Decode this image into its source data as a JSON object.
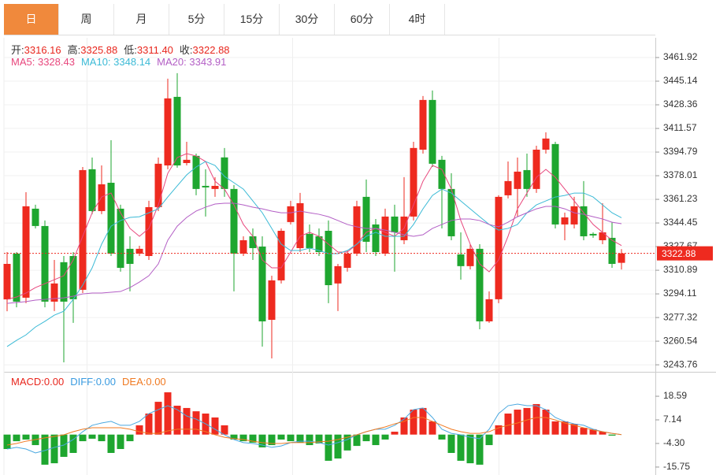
{
  "tabs": [
    "日",
    "周",
    "月",
    "5分",
    "15分",
    "30分",
    "60分",
    "4时"
  ],
  "active_tab": 0,
  "chart_data": {
    "type": "candlestick",
    "ohlc_legend": [
      {
        "name": "开:",
        "value": 3316.16,
        "label": "3316.16"
      },
      {
        "name": "高:",
        "value": 3325.88,
        "label": "3325.88"
      },
      {
        "name": "低:",
        "value": 3311.4,
        "label": "3311.40"
      },
      {
        "name": "收:",
        "value": 3322.88,
        "label": "3322.88"
      }
    ],
    "up_color": "#ee2a1f",
    "down_color": "#1ea62f",
    "open": [
      3290.2,
      3322.7,
      3291.4,
      3354.6,
      3342.3,
      3288.6,
      3316.6,
      3321.0,
      3297.0,
      3382.6,
      3352.9,
      3373.0,
      3354.6,
      3326.1,
      3322.7,
      3321.0,
      3355.7,
      3385.3,
      3434.0,
      3387.0,
      3392.1,
      3370.8,
      3368.6,
      3391.0,
      3368.6,
      3322.7,
      3335.0,
      3327.7,
      3275.7,
      3303.7,
      3345.1,
      3326.6,
      3336.7,
      3335.0,
      3338.9,
      3301.5,
      3312.6,
      3322.7,
      3363.0,
      3343.4,
      3322.7,
      3349.0,
      3332.2,
      3349.0,
      3396.5,
      3431.8,
      3389.3,
      3368.6,
      3322.1,
      3313.8,
      3326.1,
      3274.6,
      3290.3,
      3364.1,
      3368.6,
      3382.0,
      3368.6,
      3396.5,
      3400.5,
      3343.4,
      3343.4,
      3356.3,
      3336.7,
      3332.2,
      3333.9,
      3316.16
    ],
    "high": [
      3323.8,
      3323.8,
      3366.3,
      3357.4,
      3346.2,
      3318.2,
      3321.0,
      3323.8,
      3384.2,
      3390.9,
      3385.3,
      3403.2,
      3357.4,
      3335.0,
      3328.3,
      3360.2,
      3390.9,
      3446.9,
      3450.8,
      3402.1,
      3393.7,
      3382.6,
      3377.0,
      3397.7,
      3371.4,
      3335.0,
      3340.6,
      3335.0,
      3307.0,
      3340.6,
      3360.2,
      3365.8,
      3343.4,
      3340.6,
      3346.2,
      3315.4,
      3324.9,
      3360.2,
      3375.3,
      3347.3,
      3354.6,
      3357.4,
      3377.0,
      3402.1,
      3434.6,
      3438.5,
      3392.1,
      3379.8,
      3337.8,
      3329.4,
      3329.4,
      3295.9,
      3364.1,
      3388.1,
      3390.9,
      3393.7,
      3399.3,
      3408.8,
      3402.1,
      3351.8,
      3363.0,
      3374.2,
      3337.8,
      3358.5,
      3345.1,
      3325.88
    ],
    "low": [
      3281.8,
      3284.6,
      3287.5,
      3340.6,
      3284.6,
      3281.9,
      3245.5,
      3273.5,
      3294.7,
      3350.7,
      3350.7,
      3321.0,
      3309.9,
      3295.9,
      3321.0,
      3318.2,
      3352.9,
      3382.6,
      3383.7,
      3385.3,
      3364.1,
      3349.0,
      3363.0,
      3363.0,
      3295.9,
      3321.0,
      3318.2,
      3256.7,
      3248.3,
      3301.5,
      3343.4,
      3323.8,
      3323.8,
      3321.0,
      3287.5,
      3281.9,
      3309.9,
      3321.0,
      3323.8,
      3321.0,
      3321.0,
      3309.9,
      3329.4,
      3346.2,
      3393.7,
      3384.2,
      3340.6,
      3332.2,
      3304.2,
      3311.5,
      3269.0,
      3273.5,
      3287.5,
      3361.9,
      3349.0,
      3363.0,
      3365.8,
      3393.7,
      3340.6,
      3332.2,
      3340.6,
      3332.2,
      3333.9,
      3329.4,
      3312.6,
      3311.4
    ],
    "close": [
      3315.4,
      3288.6,
      3356.3,
      3342.3,
      3288.6,
      3301.5,
      3288.6,
      3290.3,
      3382.0,
      3352.9,
      3371.9,
      3322.7,
      3312.6,
      3315.4,
      3326.1,
      3355.7,
      3386.5,
      3432.9,
      3385.3,
      3389.3,
      3368.6,
      3369.7,
      3370.8,
      3368.6,
      3322.7,
      3332.2,
      3326.6,
      3274.6,
      3303.7,
      3338.9,
      3356.3,
      3358.5,
      3326.6,
      3323.8,
      3300.3,
      3313.8,
      3322.7,
      3356.3,
      3331.1,
      3323.8,
      3349.0,
      3337.8,
      3349.0,
      3397.7,
      3431.8,
      3386.5,
      3368.6,
      3335.0,
      3313.8,
      3326.1,
      3274.6,
      3290.3,
      3363.0,
      3374.2,
      3380.9,
      3368.6,
      3396.5,
      3404.4,
      3343.4,
      3348.4,
      3356.3,
      3335.0,
      3335.6,
      3337.8,
      3315.4,
      3322.88
    ],
    "series": [
      {
        "name": "MA5:",
        "color": "#e8467c",
        "values": [
          3290.2,
          3291.9,
          3294.7,
          3298.6,
          3301.4,
          3304.2,
          3307.0,
          3318.2,
          3335.0,
          3351.7,
          3362.9,
          3365.7,
          3351.7,
          3340.6,
          3335.0,
          3340.6,
          3357.3,
          3379.7,
          3390.9,
          3393.7,
          3392.0,
          3388.1,
          3374.1,
          3368.5,
          3357.3,
          3343.4,
          3335.0,
          3318.2,
          3312.6,
          3312.6,
          3323.8,
          3335.0,
          3337.8,
          3335.0,
          3329.4,
          3323.8,
          3323.8,
          3329.4,
          3337.8,
          3340.6,
          3337.8,
          3335.0,
          3340.6,
          3357.3,
          3374.1,
          3385.3,
          3382.5,
          3368.5,
          3346.2,
          3329.4,
          3315.4,
          3309.8,
          3318.2,
          3335.0,
          3354.5,
          3365.7,
          3376.9,
          3382.5,
          3376.9,
          3368.5,
          3360.1,
          3351.7,
          3343.4,
          3337.8,
          3332.2,
          3328.43
        ]
      },
      {
        "name": "MA10:",
        "color": "#3bbad6",
        "values": [
          3256.7,
          3261.1,
          3265.0,
          3270.6,
          3274.6,
          3279.0,
          3281.8,
          3290.2,
          3300.3,
          3312.6,
          3329.4,
          3342.2,
          3346.2,
          3348.4,
          3348.9,
          3351.7,
          3354.5,
          3362.9,
          3370.8,
          3378.6,
          3384.2,
          3388.1,
          3385.3,
          3377.5,
          3373.0,
          3368.5,
          3360.1,
          3351.7,
          3340.6,
          3329.4,
          3324.9,
          3324.9,
          3326.6,
          3324.9,
          3322.7,
          3322.7,
          3324.9,
          3329.4,
          3335.0,
          3337.8,
          3335.0,
          3335.0,
          3335.0,
          3343.4,
          3354.5,
          3364.0,
          3368.5,
          3365.7,
          3360.1,
          3354.5,
          3348.9,
          3343.4,
          3339.4,
          3340.6,
          3343.4,
          3351.7,
          3357.3,
          3360.1,
          3362.9,
          3364.0,
          3365.7,
          3365.7,
          3362.9,
          3357.3,
          3351.7,
          3348.14
        ]
      },
      {
        "name": "MA20:",
        "color": "#b35ec5",
        "values": [
          3287.4,
          3288.0,
          3288.6,
          3289.7,
          3290.2,
          3290.8,
          3291.3,
          3292.5,
          3294.1,
          3294.7,
          3294.7,
          3295.3,
          3295.8,
          3298.6,
          3302.5,
          3307.0,
          3315.4,
          3332.2,
          3342.2,
          3348.4,
          3352.9,
          3355.7,
          3357.9,
          3358.5,
          3358.5,
          3357.3,
          3355.7,
          3354.5,
          3352.9,
          3351.7,
          3351.7,
          3352.9,
          3351.7,
          3350.6,
          3348.9,
          3346.2,
          3343.4,
          3341.7,
          3340.6,
          3340.6,
          3339.4,
          3337.8,
          3336.1,
          3335.0,
          3336.1,
          3340.6,
          3343.4,
          3346.2,
          3347.3,
          3347.3,
          3346.2,
          3343.4,
          3341.7,
          3345.0,
          3348.9,
          3351.7,
          3354.5,
          3356.2,
          3356.2,
          3354.5,
          3351.7,
          3350.6,
          3348.9,
          3347.3,
          3345.0,
          3343.91
        ]
      }
    ],
    "ylim": [
      3239.9,
      3474.8
    ],
    "yticks": [
      3461.92,
      3445.14,
      3428.36,
      3411.57,
      3394.79,
      3378.01,
      3361.23,
      3344.45,
      3327.67,
      3310.89,
      3294.11,
      3277.32,
      3260.54,
      3243.76
    ],
    "grid": true,
    "macd": {
      "type": "macd",
      "legend": [
        {
          "name": "MACD:",
          "value": 0,
          "label": "0.00",
          "color": "#e8261d"
        },
        {
          "name": "DIFF:",
          "value": 0,
          "label": "0.00",
          "color": "#3a9be0"
        },
        {
          "name": "DEA:",
          "value": 0,
          "label": "0.00",
          "color": "#f07a22"
        }
      ],
      "histogram": [
        -7.0,
        -3.2,
        -2.4,
        -5.1,
        -14.6,
        -13.9,
        -10.8,
        -8.9,
        -3.2,
        -2.0,
        -3.2,
        -8.9,
        -7.0,
        -3.2,
        4.5,
        10.2,
        15.9,
        20.5,
        14.0,
        12.9,
        11.3,
        10.2,
        8.3,
        4.5,
        -2.4,
        -3.2,
        -3.9,
        -6.2,
        -5.1,
        -2.4,
        -3.2,
        -3.9,
        -5.1,
        -4.3,
        -12.7,
        -11.6,
        -7.7,
        -5.5,
        -3.2,
        -5.1,
        -2.4,
        1.4,
        8.3,
        12.1,
        12.9,
        6.4,
        -2.4,
        -8.9,
        -12.7,
        -13.9,
        -14.6,
        -5.1,
        4.5,
        10.2,
        12.1,
        12.9,
        14.8,
        12.1,
        6.4,
        6.4,
        5.2,
        3.3,
        2.6,
        1.4,
        -0.5,
        0
      ],
      "series": [
        {
          "name": "DIFF",
          "color": "#4aa8e0",
          "values": [
            -7.0,
            -6.2,
            -7.0,
            -8.9,
            -7.7,
            -6.2,
            -5.1,
            -2.4,
            1.4,
            4.5,
            5.6,
            6.4,
            4.5,
            4.5,
            6.4,
            10.2,
            12.1,
            14.0,
            12.1,
            9.0,
            7.5,
            5.2,
            2.6,
            -0.1,
            -2.4,
            -3.9,
            -4.3,
            -5.1,
            -6.2,
            -5.5,
            -3.9,
            -3.2,
            -3.2,
            -3.9,
            -5.1,
            -3.9,
            -2.4,
            -0.1,
            1.4,
            2.6,
            2.6,
            4.5,
            7.5,
            12.1,
            12.9,
            8.3,
            2.6,
            0.6,
            -0.1,
            -1.3,
            -2.0,
            2.6,
            10.2,
            14.0,
            14.8,
            14.0,
            14.0,
            12.1,
            8.3,
            6.4,
            5.2,
            4.5,
            2.6,
            1.4,
            0.6,
            0
          ]
        },
        {
          "name": "DEA",
          "color": "#f07a22",
          "values": [
            -5.1,
            -4.3,
            -3.2,
            -2.4,
            -1.6,
            -0.9,
            -0.1,
            1.4,
            2.6,
            3.3,
            3.3,
            3.3,
            3.3,
            2.6,
            1.4,
            0.6,
            0.6,
            1.8,
            2.6,
            2.6,
            2.6,
            1.4,
            -0.1,
            -1.3,
            -2.0,
            -2.4,
            -3.2,
            -3.9,
            -4.3,
            -4.3,
            -3.9,
            -3.9,
            -3.9,
            -3.5,
            -3.2,
            -2.4,
            -1.3,
            -0.1,
            1.4,
            2.6,
            3.7,
            5.2,
            6.4,
            8.3,
            8.3,
            6.4,
            4.5,
            2.6,
            1.4,
            0.6,
            0.6,
            1.4,
            3.3,
            4.5,
            5.6,
            7.1,
            8.3,
            8.3,
            7.1,
            5.6,
            4.5,
            3.3,
            2.2,
            1.4,
            0.6,
            0
          ]
        }
      ],
      "ylim": [
        -19.6,
        29.3
      ],
      "yticks": [
        18.59,
        7.14,
        {
          "value": -4.3,
          "label": "-4.30"
        },
        -15.75
      ]
    }
  }
}
